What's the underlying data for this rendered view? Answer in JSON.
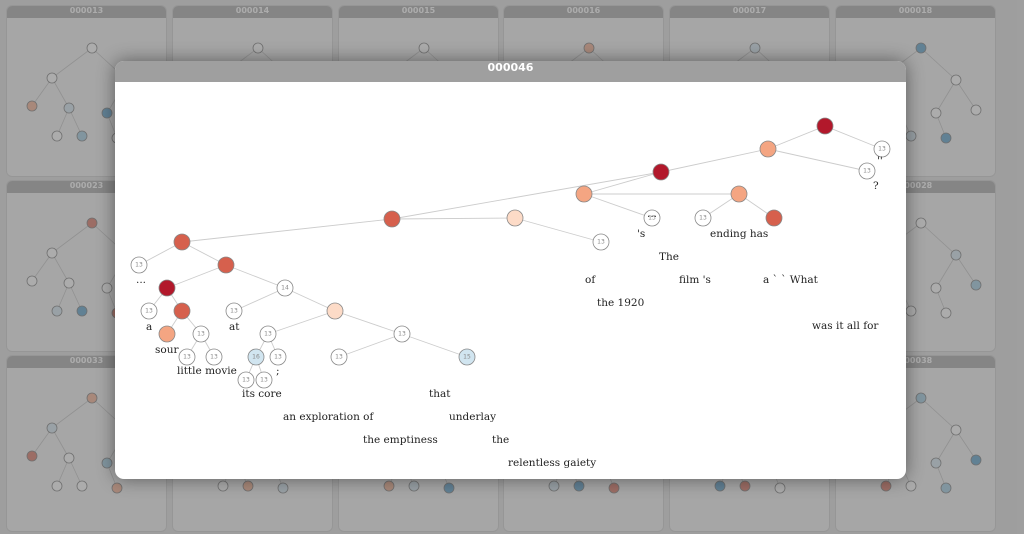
{
  "background_cards": [
    {
      "id": "000013"
    },
    {
      "id": "000014"
    },
    {
      "id": "000015"
    },
    {
      "id": "000016"
    },
    {
      "id": "000017"
    },
    {
      "id": "000018"
    },
    {
      "id": "000023"
    },
    {
      "id": ""
    },
    {
      "id": ""
    },
    {
      "id": ""
    },
    {
      "id": ""
    },
    {
      "id": "000028"
    },
    {
      "id": "000033"
    },
    {
      "id": ""
    },
    {
      "id": ""
    },
    {
      "id": ""
    },
    {
      "id": ""
    },
    {
      "id": "000038"
    }
  ],
  "modal": {
    "title": "000046"
  },
  "legend_colors": {
    "very_positive": "#b2182b",
    "positive": "#d6604d",
    "slightly_positive": "#f4a582",
    "weak_positive": "#fddbc7",
    "neutral": "#ffffff",
    "weak_negative": "#d1e5f0"
  },
  "tree_words": [
    "...",
    "a",
    "sour",
    "little movie",
    "at",
    "its core",
    ";",
    "an exploration of",
    "the emptiness",
    "that",
    "underlay",
    "the",
    "relentless gaiety",
    "of",
    "the 1920",
    "'s",
    "...",
    "The",
    "film 's",
    "ending has",
    "a ` ` What",
    "was it all for",
    "''",
    "?"
  ],
  "tree_node_labels": [
    "13",
    "13",
    "13",
    "13",
    "13",
    "13",
    "13",
    "13",
    "13",
    "13",
    "13",
    "13",
    "13",
    "13",
    "13",
    "13",
    "13",
    "13",
    "13",
    "14",
    "15",
    "16",
    "13",
    "13",
    "13",
    "13",
    "13",
    "13",
    "13",
    "13",
    "13",
    "13"
  ]
}
